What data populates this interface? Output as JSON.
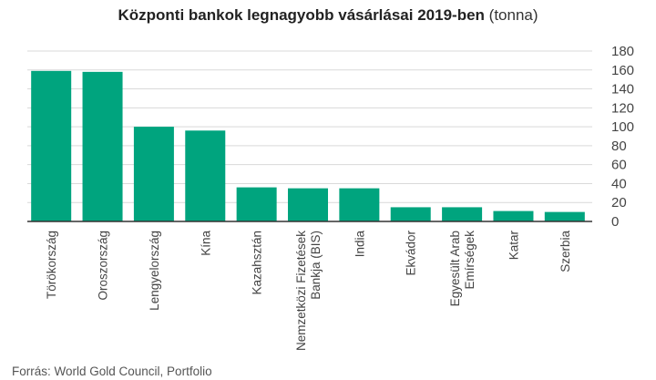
{
  "title": {
    "main": "Központi bankok legnagyobb vásárlásai 2019-ben",
    "unit": "(tonna)"
  },
  "source": "Forrás: World Gold Council, Portfolio",
  "colors": {
    "bar": "#00a47e",
    "grid": "#d9d9d9",
    "axis": "#333333",
    "tick": "#444444"
  },
  "chart_data": {
    "type": "bar",
    "categories": [
      "Törökország",
      "Oroszország",
      "Lengyelország",
      "Kína",
      "Kazahsztán",
      "Nemzetközi Fizetések Bankja (BIS)",
      "India",
      "Ekvádor",
      "Egyesült Arab Emírségek",
      "Katar",
      "Szerbia"
    ],
    "category_lines": [
      [
        "Törökország"
      ],
      [
        "Oroszország"
      ],
      [
        "Lengyelország"
      ],
      [
        "Kína"
      ],
      [
        "Kazahsztán"
      ],
      [
        "Nemzetközi Fizetések",
        "Bankja (BIS)"
      ],
      [
        "India"
      ],
      [
        "Ekvádor"
      ],
      [
        "Egyesült Arab",
        "Emírségek"
      ],
      [
        "Katar"
      ],
      [
        "Szerbia"
      ]
    ],
    "values": [
      159,
      158,
      100,
      96,
      36,
      35,
      35,
      15,
      15,
      11,
      10
    ],
    "ylim": [
      0,
      180
    ],
    "yticks": [
      0,
      20,
      40,
      60,
      80,
      100,
      120,
      140,
      160,
      180
    ],
    "y_axis_side": "right",
    "grid": true
  }
}
